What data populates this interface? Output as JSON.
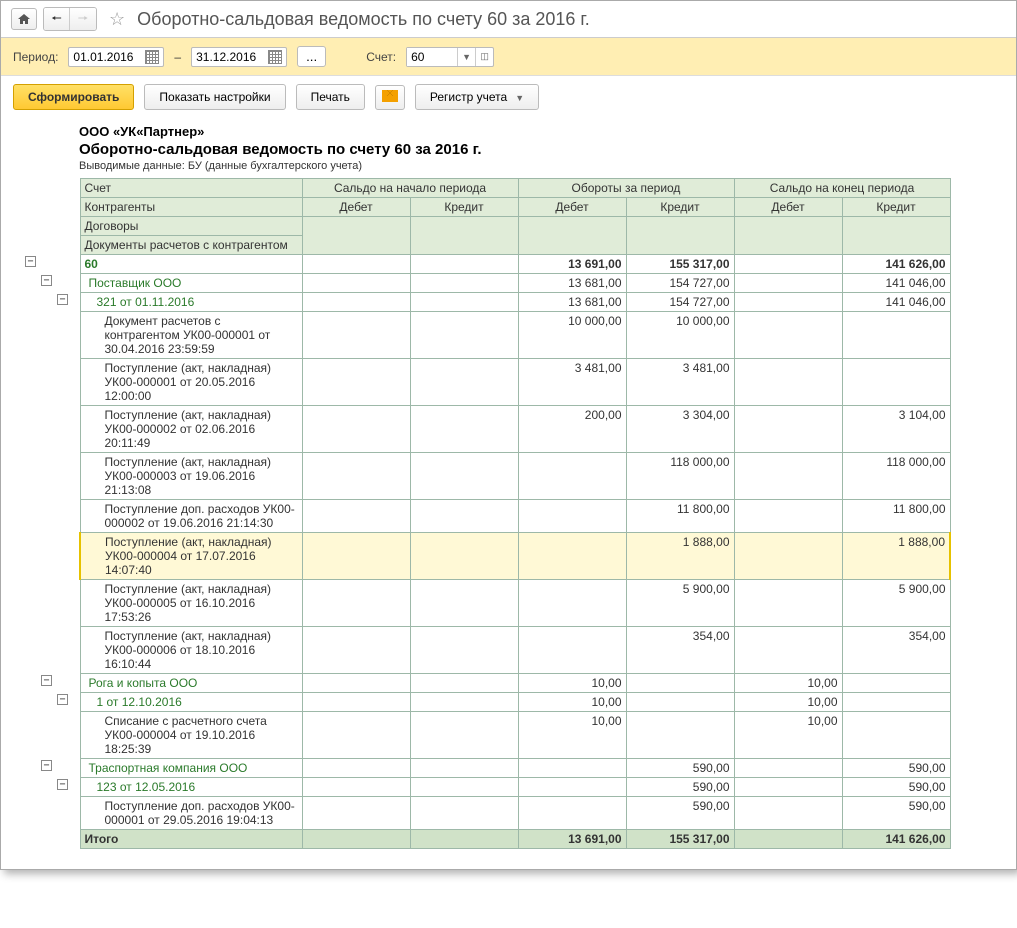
{
  "title": "Оборотно-сальдовая ведомость по счету 60 за 2016 г.",
  "toolbar": {
    "period_label": "Период:",
    "date_from": "01.01.2016",
    "date_to": "31.12.2016",
    "dash": "–",
    "dots": "...",
    "account_label": "Счет:",
    "account_value": "60"
  },
  "buttons": {
    "form": "Сформировать",
    "settings": "Показать настройки",
    "print": "Печать",
    "register": "Регистр учета"
  },
  "report": {
    "company": "ООО «УК«Партнер»",
    "title": "Оборотно-сальдовая ведомость по счету 60 за 2016 г.",
    "subtitle": "Выводимые данные:  БУ (данные бухгалтерского учета)",
    "headers": {
      "account": "Счет",
      "counterparties": "Контрагенты",
      "contracts": "Договоры",
      "documents": "Документы расчетов с контрагентом",
      "saldo_start": "Сальдо на начало периода",
      "turnover": "Обороты за период",
      "saldo_end": "Сальдо на конец периода",
      "debit": "Дебет",
      "credit": "Кредит",
      "total": "Итого"
    },
    "rows": [
      {
        "lvl": 0,
        "cls": "green bold",
        "label": "60",
        "td": "13 691,00",
        "tc": "155 317,00",
        "ec": "141 626,00"
      },
      {
        "lvl": 1,
        "cls": "green",
        "label": "Поставщик ООО",
        "td": "13 681,00",
        "tc": "154 727,00",
        "ec": "141 046,00"
      },
      {
        "lvl": 2,
        "cls": "green",
        "label": "321 от 01.11.2016",
        "td": "13 681,00",
        "tc": "154 727,00",
        "ec": "141 046,00"
      },
      {
        "lvl": 3,
        "label": "Документ расчетов с контрагентом УК00-000001 от 30.04.2016 23:59:59",
        "td": "10 000,00",
        "tc": "10 000,00"
      },
      {
        "lvl": 3,
        "label": "Поступление (акт, накладная) УК00-000001 от 20.05.2016 12:00:00",
        "td": "3 481,00",
        "tc": "3 481,00"
      },
      {
        "lvl": 3,
        "label": "Поступление (акт, накладная) УК00-000002 от 02.06.2016 20:11:49",
        "td": "200,00",
        "tc": "3 304,00",
        "ec": "3 104,00"
      },
      {
        "lvl": 3,
        "label": "Поступление (акт, накладная) УК00-000003 от 19.06.2016 21:13:08",
        "tc": "118 000,00",
        "ec": "118 000,00"
      },
      {
        "lvl": 3,
        "label": "Поступление доп. расходов УК00-000002 от 19.06.2016 21:14:30",
        "tc": "11 800,00",
        "ec": "11 800,00"
      },
      {
        "lvl": 3,
        "sel": true,
        "label": "Поступление (акт, накладная) УК00-000004 от 17.07.2016 14:07:40",
        "tc": "1 888,00",
        "ec": "1 888,00"
      },
      {
        "lvl": 3,
        "label": "Поступление (акт, накладная) УК00-000005 от 16.10.2016 17:53:26",
        "tc": "5 900,00",
        "ec": "5 900,00"
      },
      {
        "lvl": 3,
        "label": "Поступление (акт, накладная) УК00-000006 от 18.10.2016 16:10:44",
        "tc": "354,00",
        "ec": "354,00"
      },
      {
        "lvl": 1,
        "cls": "green",
        "label": "Рога и копыта ООО",
        "td": "10,00",
        "ed": "10,00"
      },
      {
        "lvl": 2,
        "cls": "green",
        "label": "1 от 12.10.2016",
        "td": "10,00",
        "ed": "10,00"
      },
      {
        "lvl": 3,
        "label": "Списание с расчетного счета УК00-000004 от 19.10.2016 18:25:39",
        "td": "10,00",
        "ed": "10,00"
      },
      {
        "lvl": 1,
        "cls": "green",
        "label": "Траспортная компания ООО",
        "tc": "590,00",
        "ec": "590,00"
      },
      {
        "lvl": 2,
        "cls": "green",
        "label": "123 от 12.05.2016",
        "tc": "590,00",
        "ec": "590,00"
      },
      {
        "lvl": 3,
        "label": "Поступление доп. расходов УК00-000001 от 29.05.2016 19:04:13",
        "tc": "590,00",
        "ec": "590,00"
      }
    ],
    "total": {
      "td": "13 691,00",
      "tc": "155 317,00",
      "ec": "141 626,00"
    }
  }
}
